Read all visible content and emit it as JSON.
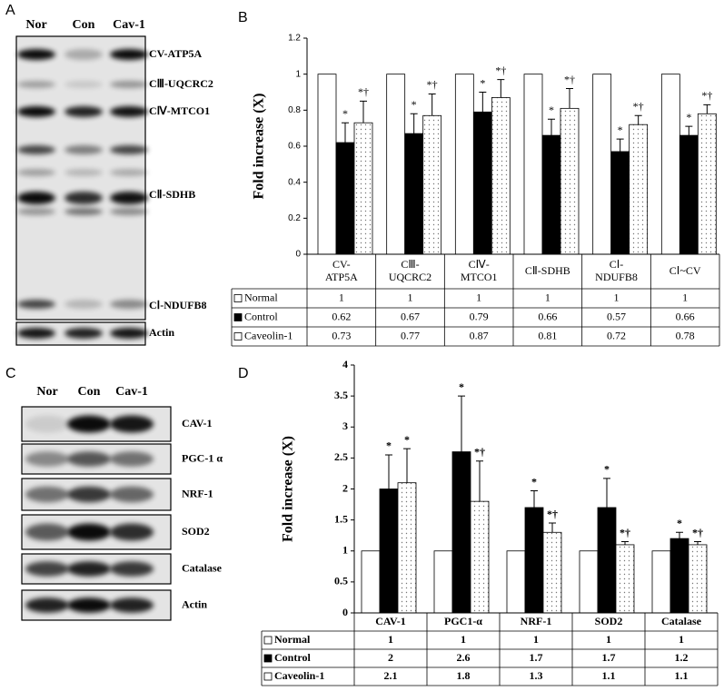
{
  "panel_labels": [
    "A",
    "B",
    "C",
    "D"
  ],
  "blot_a": {
    "lanes": [
      "Nor",
      "Con",
      "Cav-1"
    ],
    "bands": [
      "CV-ATP5A",
      "CⅢ-UQCRC2",
      "CⅣ-MTCO1",
      "CⅡ-SDHB",
      "CⅠ-NDUFB8",
      "Actin"
    ]
  },
  "blot_c": {
    "lanes": [
      "Nor",
      "Con",
      "Cav-1"
    ],
    "bands": [
      "CAV-1",
      "PGC-1 α",
      "NRF-1",
      "SOD2",
      "Catalase",
      "Actin"
    ]
  },
  "chart_data": [
    {
      "type": "bar",
      "y_label": "Fold increase (X)",
      "categories": [
        [
          "CV-",
          "ATP5A"
        ],
        [
          "CⅢ-",
          "UQCRC2"
        ],
        [
          "CⅣ-",
          "MTCO1"
        ],
        [
          "CⅡ-SDHB"
        ],
        [
          "CⅠ-",
          "NDUFB8"
        ],
        [
          "CⅠ~CV"
        ]
      ],
      "ylim": [
        0,
        1.2
      ],
      "yticks": [
        0,
        0.2,
        0.4,
        0.6,
        0.8,
        1,
        1.2
      ],
      "series": [
        {
          "name": "Normal",
          "color": "#ffffff",
          "values": [
            1,
            1,
            1,
            1,
            1,
            1
          ]
        },
        {
          "name": "Control",
          "color": "#000000",
          "values": [
            0.62,
            0.67,
            0.79,
            0.66,
            0.57,
            0.66
          ],
          "errors": [
            0.11,
            0.11,
            0.11,
            0.09,
            0.07,
            0.05
          ],
          "significance": [
            "*",
            "*",
            "*",
            "*",
            "*",
            "*"
          ]
        },
        {
          "name": "Caveolin-1",
          "color": "#ffffff",
          "pattern": "dots",
          "values": [
            0.73,
            0.77,
            0.87,
            0.81,
            0.72,
            0.78
          ],
          "errors": [
            0.12,
            0.12,
            0.1,
            0.11,
            0.05,
            0.05
          ],
          "significance": [
            "*†",
            "*†",
            "*†",
            "*†",
            "*†",
            "*†"
          ]
        }
      ]
    },
    {
      "type": "bar",
      "y_label": "Fold increase (X)",
      "categories": [
        "CAV-1",
        "PGC1-α",
        "NRF-1",
        "SOD2",
        "Catalase"
      ],
      "ylim": [
        0,
        4
      ],
      "yticks": [
        0,
        0.5,
        1,
        1.5,
        2,
        2.5,
        3,
        3.5,
        4
      ],
      "series": [
        {
          "name": "Normal",
          "color": "#ffffff",
          "values": [
            1,
            1,
            1,
            1,
            1
          ]
        },
        {
          "name": "Control",
          "color": "#000000",
          "values": [
            2,
            2.6,
            1.7,
            1.7,
            1.2
          ],
          "errors": [
            0.55,
            0.9,
            0.27,
            0.47,
            0.1
          ],
          "significance": [
            "*",
            "*",
            "*",
            "*",
            "*"
          ]
        },
        {
          "name": "Caveolin-1",
          "color": "#ffffff",
          "pattern": "dots",
          "values": [
            2.1,
            1.8,
            1.3,
            1.1,
            1.1
          ],
          "errors": [
            0.55,
            0.65,
            0.15,
            0.05,
            0.05
          ],
          "significance": [
            "*",
            "*†",
            "*†",
            "*†",
            "*†"
          ]
        }
      ]
    }
  ]
}
